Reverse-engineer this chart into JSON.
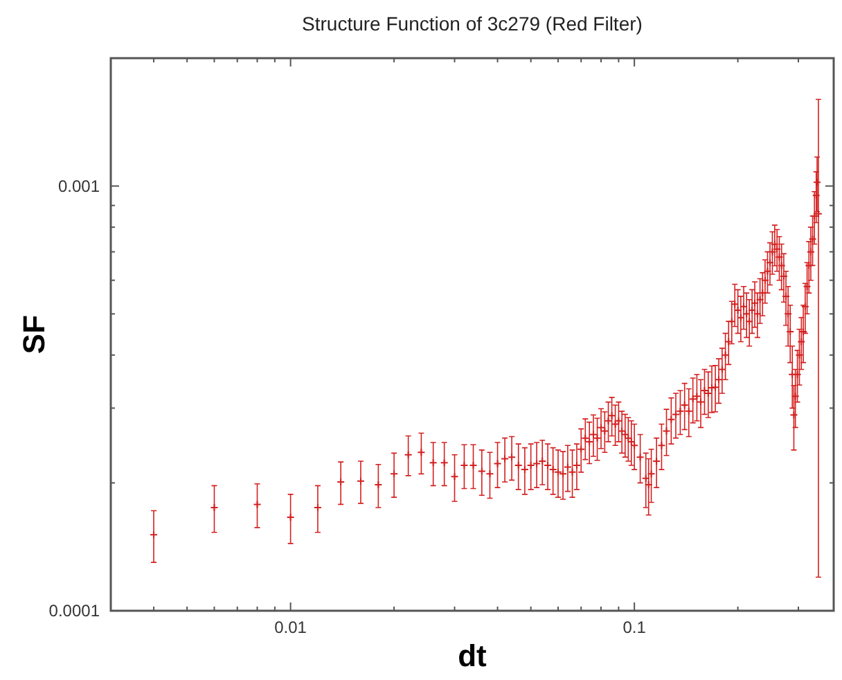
{
  "chart_data": {
    "type": "scatter",
    "title": "Structure Function of 3c279 (Red Filter)",
    "xlabel": "dt",
    "ylabel": "SF",
    "log": "xy",
    "grid": false,
    "marker": "cross",
    "xlim": [
      0.003,
      0.38
    ],
    "ylim": [
      0.0001,
      0.002
    ],
    "xticks": [
      {
        "value": 0.003,
        "label": null
      },
      {
        "value": 0.004,
        "label": null
      },
      {
        "value": 0.005,
        "label": null
      },
      {
        "value": 0.006,
        "label": null
      },
      {
        "value": 0.007,
        "label": null
      },
      {
        "value": 0.008,
        "label": null
      },
      {
        "value": 0.009,
        "label": null
      },
      0.01,
      {
        "value": 0.02,
        "label": null
      },
      {
        "value": 0.03,
        "label": null
      },
      {
        "value": 0.04,
        "label": null
      },
      {
        "value": 0.05,
        "label": null
      },
      {
        "value": 0.06,
        "label": null
      },
      {
        "value": 0.07,
        "label": null
      },
      {
        "value": 0.08,
        "label": null
      },
      {
        "value": 0.09,
        "label": null
      },
      0.1,
      {
        "value": 0.2,
        "label": null
      },
      {
        "value": 0.3,
        "label": null
      }
    ],
    "yticks": [
      0.0001,
      {
        "value": 0.0002,
        "label": null
      },
      {
        "value": 0.0003,
        "label": null
      },
      {
        "value": 0.0004,
        "label": null
      },
      {
        "value": 0.0005,
        "label": null
      },
      {
        "value": 0.0006,
        "label": null
      },
      {
        "value": 0.0007,
        "label": null
      },
      {
        "value": 0.0008,
        "label": null
      },
      {
        "value": 0.0009,
        "label": null
      },
      0.001,
      {
        "value": 0.002,
        "label": null
      }
    ],
    "series": [
      {
        "color": "#d42020",
        "x": [
          0.004,
          0.006,
          0.008,
          0.01,
          0.012,
          0.014,
          0.016,
          0.018,
          0.02,
          0.022,
          0.024,
          0.026,
          0.028,
          0.03,
          0.032,
          0.034,
          0.036,
          0.038,
          0.04,
          0.042,
          0.044,
          0.046,
          0.048,
          0.05,
          0.052,
          0.054,
          0.056,
          0.058,
          0.06,
          0.062,
          0.064,
          0.066,
          0.068,
          0.07,
          0.072,
          0.074,
          0.076,
          0.078,
          0.08,
          0.082,
          0.084,
          0.086,
          0.088,
          0.09,
          0.092,
          0.094,
          0.096,
          0.098,
          0.1,
          0.104,
          0.108,
          0.11,
          0.112,
          0.116,
          0.12,
          0.124,
          0.128,
          0.132,
          0.136,
          0.14,
          0.144,
          0.148,
          0.152,
          0.156,
          0.16,
          0.164,
          0.168,
          0.172,
          0.176,
          0.18,
          0.184,
          0.188,
          0.192,
          0.196,
          0.2,
          0.204,
          0.208,
          0.212,
          0.216,
          0.22,
          0.224,
          0.228,
          0.232,
          0.236,
          0.24,
          0.244,
          0.248,
          0.252,
          0.256,
          0.26,
          0.264,
          0.268,
          0.272,
          0.276,
          0.28,
          0.284,
          0.288,
          0.291,
          0.294,
          0.298,
          0.302,
          0.306,
          0.31,
          0.314,
          0.318,
          0.322,
          0.326,
          0.33,
          0.334,
          0.338,
          0.34,
          0.343
        ],
        "values": [
          0.000151,
          0.000175,
          0.000178,
          0.000166,
          0.000175,
          0.000201,
          0.000202,
          0.000198,
          0.00021,
          0.000233,
          0.000236,
          0.000223,
          0.000223,
          0.000207,
          0.00022,
          0.00022,
          0.000213,
          0.00021,
          0.000222,
          0.000228,
          0.00023,
          0.00022,
          0.000215,
          0.00022,
          0.000222,
          0.000225,
          0.00022,
          0.000215,
          0.000212,
          0.00021,
          0.000218,
          0.000212,
          0.00022,
          0.00024,
          0.000255,
          0.00025,
          0.00026,
          0.000255,
          0.00027,
          0.000265,
          0.00028,
          0.000288,
          0.000275,
          0.00028,
          0.000265,
          0.00026,
          0.000255,
          0.00025,
          0.000245,
          0.00023,
          0.000205,
          0.000198,
          0.00021,
          0.000225,
          0.000245,
          0.000265,
          0.000282,
          0.00029,
          0.000295,
          0.000305,
          0.000295,
          0.000315,
          0.00032,
          0.00031,
          0.00033,
          0.000325,
          0.000335,
          0.000336,
          0.00035,
          0.00037,
          0.0004,
          0.00043,
          0.00048,
          0.000527,
          0.00051,
          0.00049,
          0.00052,
          0.0005,
          0.00048,
          0.00051,
          0.00053,
          0.0005,
          0.00054,
          0.00056,
          0.0006,
          0.00063,
          0.00066,
          0.0007,
          0.000729,
          0.00071,
          0.00068,
          0.00065,
          0.000613,
          0.00055,
          0.0005,
          0.000454,
          0.00036,
          0.000289,
          0.00032,
          0.00036,
          0.0004,
          0.00043,
          0.000454,
          0.00052,
          0.00058,
          0.00065,
          0.0007,
          0.00075,
          0.00085,
          0.00095,
          0.00102,
          0.00086
        ],
        "errors": [
          2.1e-05,
          2.2e-05,
          2.1e-05,
          2.2e-05,
          2.2e-05,
          2.3e-05,
          2.3e-05,
          2.3e-05,
          2.5e-05,
          2.5e-05,
          2.6e-05,
          2.6e-05,
          2.6e-05,
          2.6e-05,
          2.6e-05,
          2.6e-05,
          2.6e-05,
          2.6e-05,
          2.7e-05,
          2.7e-05,
          2.7e-05,
          2.7e-05,
          2.7e-05,
          2.7e-05,
          2.7e-05,
          2.7e-05,
          2.7e-05,
          2.7e-05,
          2.7e-05,
          2.7e-05,
          2.7e-05,
          2.7e-05,
          2.7e-05,
          2.8e-05,
          2.8e-05,
          2.8e-05,
          2.9e-05,
          2.9e-05,
          2.9e-05,
          2.9e-05,
          3e-05,
          3e-05,
          3e-05,
          3e-05,
          3e-05,
          3e-05,
          3e-05,
          3e-05,
          3e-05,
          3e-05,
          3e-05,
          3e-05,
          3e-05,
          3e-05,
          3e-05,
          3.3e-05,
          3.5e-05,
          3.5e-05,
          3.5e-05,
          3.8e-05,
          3.8e-05,
          3.8e-05,
          4e-05,
          4e-05,
          4e-05,
          4e-05,
          4.2e-05,
          4.2e-05,
          4.2e-05,
          4.5e-05,
          5e-05,
          5e-05,
          5.5e-05,
          6e-05,
          6e-05,
          6e-05,
          6e-05,
          6e-05,
          6e-05,
          6e-05,
          6.5e-05,
          6e-05,
          6.5e-05,
          6.5e-05,
          7e-05,
          7e-05,
          7.5e-05,
          8e-05,
          8e-05,
          8e-05,
          8e-05,
          8e-05,
          8e-05,
          8e-05,
          8e-05,
          7e-05,
          6e-05,
          5e-05,
          5e-05,
          5e-05,
          6e-05,
          6e-05,
          7e-05,
          7e-05,
          8e-05,
          9e-05,
          0.0001,
          0.0001,
          0.00012,
          0.00013,
          0.00015,
          0.00074
        ]
      }
    ]
  }
}
